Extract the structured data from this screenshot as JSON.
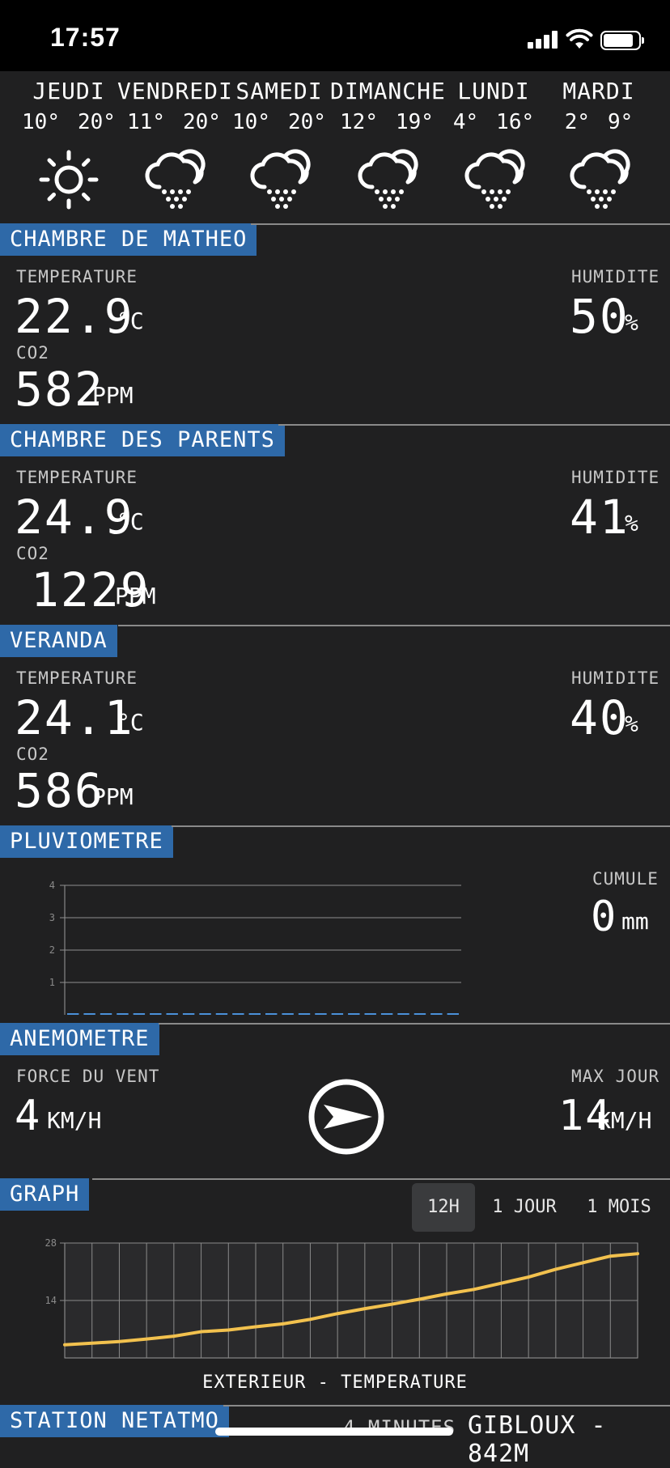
{
  "status_bar": {
    "time": "17:57"
  },
  "forecast": [
    {
      "day": "JEUDI",
      "low": "10°",
      "high": "20°",
      "icon": "sun-icon"
    },
    {
      "day": "VENDREDI",
      "low": "11°",
      "high": "20°",
      "icon": "rain-cloud-icon"
    },
    {
      "day": "SAMEDI",
      "low": "10°",
      "high": "20°",
      "icon": "rain-cloud-icon"
    },
    {
      "day": "DIMANCHE",
      "low": "12°",
      "high": "19°",
      "icon": "rain-cloud-icon"
    },
    {
      "day": "LUNDI",
      "low": "4°",
      "high": "16°",
      "icon": "rain-cloud-icon"
    },
    {
      "day": "MARDI",
      "low": "2°",
      "high": "9°",
      "icon": "rain-cloud-icon"
    }
  ],
  "rooms": [
    {
      "title": "CHAMBRE DE MATHEO",
      "temperature_label": "TEMPERATURE",
      "temperature": "22.9",
      "temperature_unit": "°C",
      "co2_label": "CO2",
      "co2": "582",
      "co2_unit": "PPM",
      "humidity_label": "HUMIDITE",
      "humidity": "50",
      "humidity_unit": "%"
    },
    {
      "title": "CHAMBRE DES PARENTS",
      "temperature_label": "TEMPERATURE",
      "temperature": "24.9",
      "temperature_unit": "°C",
      "co2_label": "CO2",
      "co2": "1229",
      "co2_unit": "PPM",
      "humidity_label": "HUMIDITE",
      "humidity": "41",
      "humidity_unit": "%"
    },
    {
      "title": "VERANDA",
      "temperature_label": "TEMPERATURE",
      "temperature": "24.1",
      "temperature_unit": "°C",
      "co2_label": "CO2",
      "co2": "586",
      "co2_unit": "PPM",
      "humidity_label": "HUMIDITE",
      "humidity": "40",
      "humidity_unit": "%"
    }
  ],
  "rain": {
    "title": "PLUVIOMETRE",
    "cumul_label": "CUMULE",
    "cumul": "0",
    "cumul_unit": "mm"
  },
  "wind": {
    "title": "ANEMOMETRE",
    "force_label": "FORCE DU VENT",
    "force": "4",
    "force_unit": "KM/H",
    "max_label": "MAX JOUR",
    "max": "14",
    "max_unit": "KM/H",
    "direction_icon": "wind-direction-arrow-icon"
  },
  "graph": {
    "title": "GRAPH",
    "tabs": [
      {
        "label": "12H",
        "active": true
      },
      {
        "label": "1 JOUR",
        "active": false
      },
      {
        "label": "1 MOIS",
        "active": false
      }
    ],
    "caption": "EXTERIEUR - TEMPERATURE"
  },
  "footer": {
    "title": "STATION NETATMO",
    "updated": "4 MINUTES",
    "location": "GIBLOUX - 842M"
  },
  "colors": {
    "accent": "#2e69a8",
    "background": "#202021",
    "line": "#f2c14e",
    "rain_line": "#4a90d9"
  },
  "chart_data": [
    {
      "type": "bar",
      "x": [
        "0",
        "1",
        "2",
        "3",
        "4",
        "5",
        "6",
        "7",
        "8",
        "9",
        "10",
        "11",
        "12",
        "13",
        "14",
        "15",
        "16",
        "17",
        "18",
        "19",
        "20",
        "21",
        "22",
        "23"
      ],
      "values": [
        0,
        0,
        0,
        0,
        0,
        0,
        0,
        0,
        0,
        0,
        0,
        0,
        0,
        0,
        0,
        0,
        0,
        0,
        0,
        0,
        0,
        0,
        0,
        0
      ],
      "ylim": [
        0,
        4
      ],
      "yticks": [
        "1",
        "2",
        "3",
        "4"
      ],
      "grid": true
    },
    {
      "type": "line",
      "x": [
        0,
        1,
        2,
        3,
        4,
        5,
        6,
        7,
        8,
        9,
        10,
        11,
        12,
        13,
        14,
        15,
        16,
        17,
        18,
        19,
        20,
        21
      ],
      "values": [
        3.2,
        3.6,
        4.0,
        4.6,
        5.3,
        6.4,
        6.8,
        7.6,
        8.3,
        9.4,
        10.8,
        12.0,
        13.1,
        14.3,
        15.6,
        16.7,
        18.2,
        19.7,
        21.6,
        23.2,
        24.8,
        25.4
      ],
      "ylim": [
        0,
        28
      ],
      "yticks": [
        "14",
        "28"
      ],
      "grid": true
    }
  ]
}
